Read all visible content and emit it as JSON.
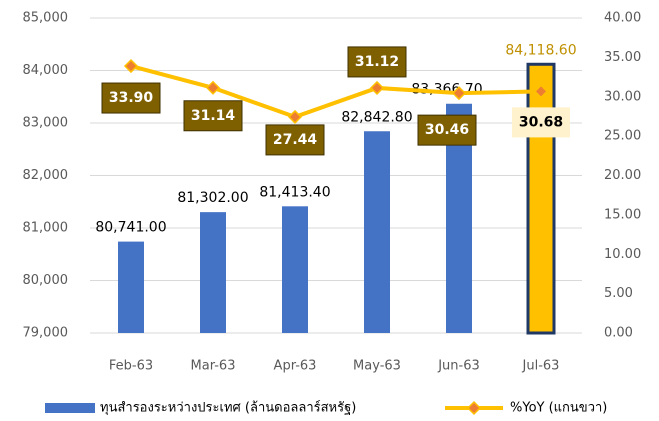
{
  "chart_data": {
    "type": "bar_line",
    "categories": [
      "Feb-63",
      "Mar-63",
      "Apr-63",
      "May-63",
      "Jun-63",
      "Jul-63"
    ],
    "series": [
      {
        "name": "ทุนสำรองระหว่างประเทศ (ล้านดอลลาร์สหรัฐ)",
        "type": "bar",
        "color": "#4472c4",
        "colors": [
          "#4472c4",
          "#4472c4",
          "#4472c4",
          "#4472c4",
          "#4472c4",
          "#ffc000"
        ],
        "values": [
          80741,
          81302,
          81413.4,
          82842.8,
          83366.7,
          84118.6
        ],
        "value_labels": [
          "80,741.00",
          "81,302.00",
          "81,413.40",
          "82,842.80",
          "83,366.70",
          "84,118.60"
        ],
        "value_label_colors": [
          "#000000",
          "#000000",
          "#000000",
          "#000000",
          "#000000",
          "#bf9000"
        ]
      },
      {
        "name": "%YoY (แกนขวา)",
        "type": "line",
        "axis": "y2",
        "color": "#ffc000",
        "marker_color": "#ed7d31",
        "values": [
          33.9,
          31.14,
          27.44,
          31.12,
          30.46,
          30.68
        ],
        "value_labels": [
          "33.90",
          "31.14",
          "27.44",
          "31.12",
          "30.46",
          "30.68"
        ],
        "label_fills": [
          "#7f6000",
          "#7f6000",
          "#7f6000",
          "#7f6000",
          "#7f6000",
          "#fff2cc"
        ],
        "label_text_colors": [
          "#ffffff",
          "#ffffff",
          "#ffffff",
          "#ffffff",
          "#ffffff",
          "#000000"
        ]
      }
    ],
    "ylim": [
      79000,
      85000
    ],
    "yticks": [
      {
        "value": 79000,
        "label": "79,000"
      },
      {
        "value": 80000,
        "label": "80,000"
      },
      {
        "value": 81000,
        "label": "81,000"
      },
      {
        "value": 82000,
        "label": "82,000"
      },
      {
        "value": 83000,
        "label": "83,000"
      },
      {
        "value": 84000,
        "label": "84,000"
      },
      {
        "value": 85000,
        "label": "85,000"
      }
    ],
    "y2lim": [
      0,
      40
    ],
    "y2ticks": [
      {
        "value": 0,
        "label": "0.00"
      },
      {
        "value": 5,
        "label": "5.00"
      },
      {
        "value": 10,
        "label": "10.00"
      },
      {
        "value": 15,
        "label": "15.00"
      },
      {
        "value": 20,
        "label": "20.00"
      },
      {
        "value": 25,
        "label": "25.00"
      },
      {
        "value": 30,
        "label": "30.00"
      },
      {
        "value": 35,
        "label": "35.00"
      },
      {
        "value": 40,
        "label": "40.00"
      }
    ],
    "grid": true,
    "legend": "bottom"
  }
}
